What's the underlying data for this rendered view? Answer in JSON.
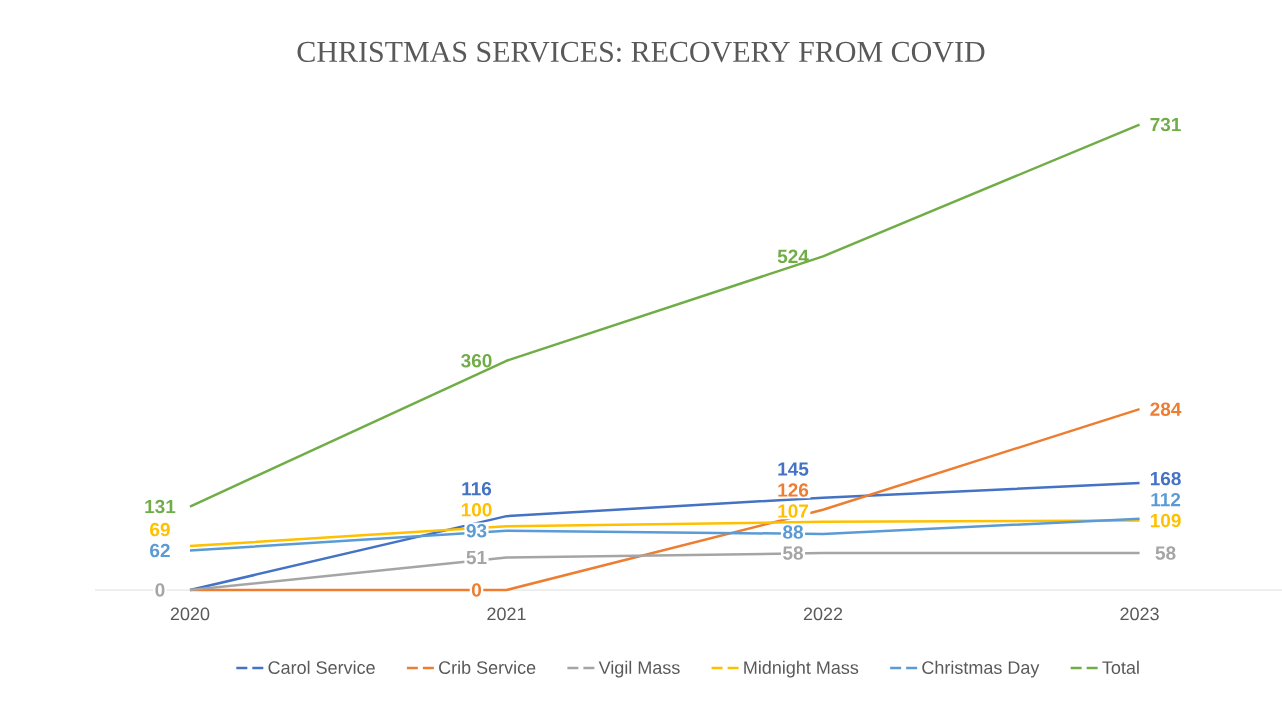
{
  "chart_data": {
    "type": "line",
    "title": "CHRISTMAS SERVICES: RECOVERY FROM COVID",
    "categories": [
      "2020",
      "2021",
      "2022",
      "2023"
    ],
    "series": [
      {
        "name": "Carol Service",
        "color": "#4472c4",
        "values": [
          0,
          116,
          145,
          168
        ],
        "value_labels": [
          null,
          "116",
          "145",
          "168"
        ]
      },
      {
        "name": "Crib Service",
        "color": "#ed7d31",
        "values": [
          0,
          0,
          126,
          284
        ],
        "value_labels": [
          null,
          "0",
          "126",
          "284"
        ]
      },
      {
        "name": "Vigil Mass",
        "color": "#a5a5a5",
        "values": [
          0,
          51,
          58,
          58
        ],
        "value_labels": [
          "0",
          "51",
          "58",
          "58"
        ]
      },
      {
        "name": "Midnight Mass",
        "color": "#ffc000",
        "values": [
          69,
          100,
          107,
          109
        ],
        "value_labels": [
          "69",
          "100",
          "107",
          "109"
        ]
      },
      {
        "name": "Christmas Day",
        "color": "#5b9bd5",
        "values": [
          62,
          93,
          88,
          112
        ],
        "value_labels": [
          "62",
          "93",
          "88",
          "112"
        ]
      },
      {
        "name": "Total",
        "color": "#70ad47",
        "values": [
          131,
          360,
          524,
          731
        ],
        "value_labels": [
          "131",
          "360",
          "524",
          "731"
        ]
      }
    ],
    "legend": "bottom"
  }
}
